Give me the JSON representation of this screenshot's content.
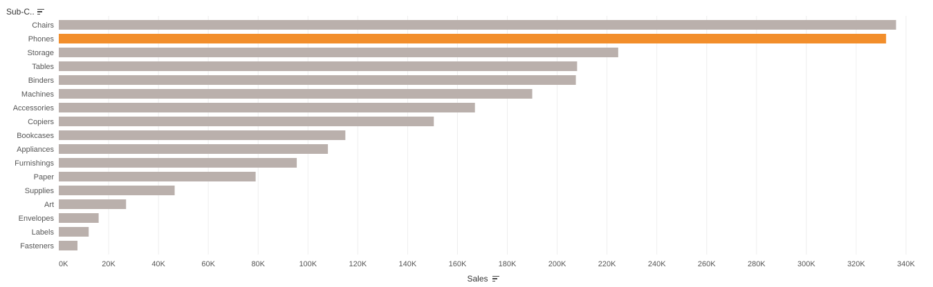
{
  "header": {
    "label": "Sub-C.."
  },
  "footer": {
    "label": "Sales"
  },
  "icons": {
    "sort": "sort-descending-icon"
  },
  "colors": {
    "default_bar": "#bab0ac",
    "highlight_bar": "#f28e2b",
    "grid": "#eeeeee"
  },
  "chart_data": {
    "type": "bar",
    "orientation": "horizontal",
    "categories": [
      "Chairs",
      "Phones",
      "Storage",
      "Tables",
      "Binders",
      "Machines",
      "Accessories",
      "Copiers",
      "Bookcases",
      "Appliances",
      "Furnishings",
      "Paper",
      "Supplies",
      "Art",
      "Envelopes",
      "Labels",
      "Fasteners"
    ],
    "values": [
      336000,
      332000,
      224500,
      208000,
      207500,
      190000,
      167000,
      150500,
      115000,
      108000,
      95500,
      79000,
      46500,
      27000,
      16000,
      12000,
      7500
    ],
    "highlighted": "Phones",
    "xlabel": "Sales",
    "ylabel": "Sub-C..",
    "xlim": [
      0,
      345000
    ],
    "xticks": [
      0,
      20000,
      40000,
      60000,
      80000,
      100000,
      120000,
      140000,
      160000,
      180000,
      200000,
      220000,
      240000,
      260000,
      280000,
      300000,
      320000,
      340000
    ],
    "xtick_labels": [
      "0K",
      "20K",
      "40K",
      "60K",
      "80K",
      "100K",
      "120K",
      "140K",
      "160K",
      "180K",
      "200K",
      "220K",
      "240K",
      "260K",
      "280K",
      "300K",
      "320K",
      "340K"
    ],
    "grid": true,
    "legend": "none"
  }
}
